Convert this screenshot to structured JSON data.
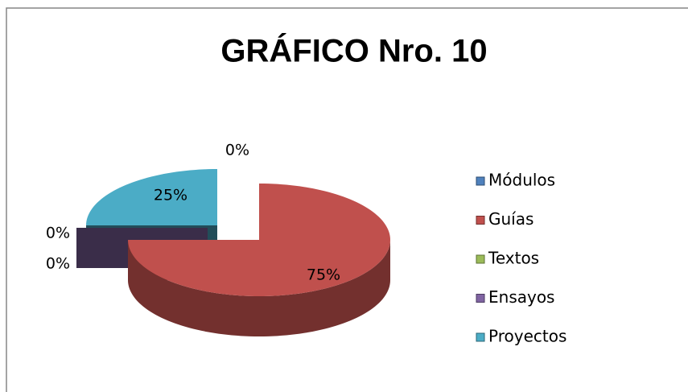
{
  "chart_data": {
    "type": "pie",
    "title": "GRÁFICO Nro. 10",
    "categories": [
      "Módulos",
      "Guías",
      "Textos",
      "Ensayos",
      "Proyectos"
    ],
    "values": [
      0,
      75,
      0,
      0,
      25
    ],
    "value_labels": [
      "0%",
      "75%",
      "0%",
      "0%",
      "25%"
    ],
    "colors": [
      "#4f81bd",
      "#c0504d",
      "#9bbb59",
      "#8064a2",
      "#4bacc6"
    ],
    "legend": "right"
  }
}
